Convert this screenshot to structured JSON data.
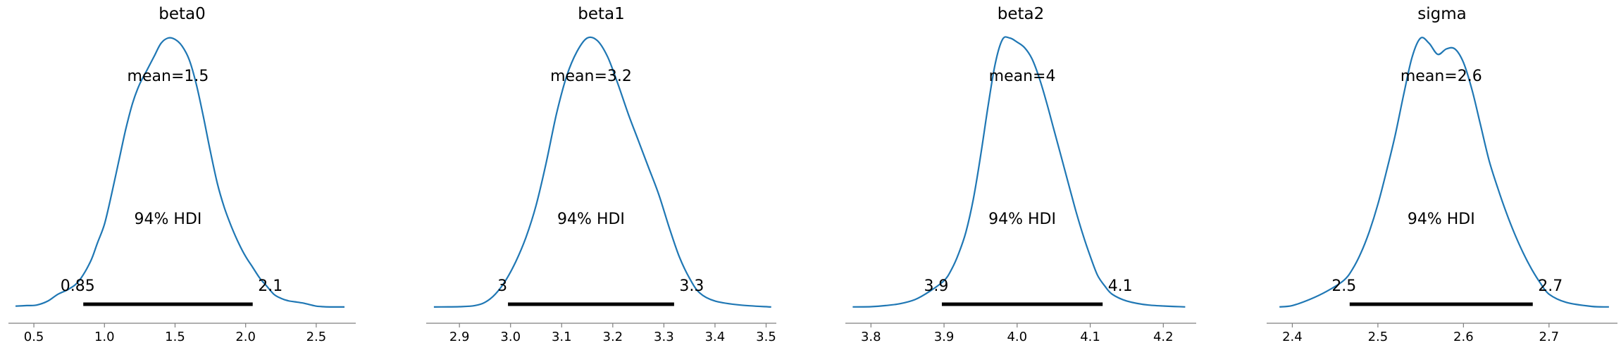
{
  "chart_data": [
    {
      "type": "line",
      "title": "beta0",
      "mean_label": "mean=1.5",
      "hdi_label": "94% HDI",
      "hdi": [
        0.85,
        2.05
      ],
      "hdi_tick_labels": [
        "0.85",
        "2.1"
      ],
      "xlim": [
        0.32,
        2.78
      ],
      "xticks": [
        0.5,
        1.0,
        1.5,
        2.0,
        2.5
      ],
      "xtick_labels": [
        "0.5",
        "1.0",
        "1.5",
        "2.0",
        "2.5"
      ],
      "density": {
        "x": [
          0.37,
          0.45,
          0.52,
          0.6,
          0.67,
          0.75,
          0.82,
          0.9,
          0.95,
          1.0,
          1.05,
          1.1,
          1.15,
          1.2,
          1.25,
          1.3,
          1.35,
          1.4,
          1.45,
          1.5,
          1.55,
          1.6,
          1.65,
          1.7,
          1.75,
          1.8,
          1.85,
          1.9,
          1.95,
          2.0,
          2.05,
          2.1,
          2.15,
          2.2,
          2.25,
          2.3,
          2.35,
          2.4,
          2.45,
          2.5,
          2.55,
          2.6,
          2.65,
          2.7
        ],
        "y": [
          0.006,
          0.008,
          0.01,
          0.025,
          0.05,
          0.07,
          0.1,
          0.17,
          0.24,
          0.31,
          0.42,
          0.54,
          0.66,
          0.76,
          0.83,
          0.88,
          0.93,
          0.98,
          1.0,
          0.995,
          0.97,
          0.92,
          0.83,
          0.71,
          0.58,
          0.46,
          0.37,
          0.3,
          0.24,
          0.19,
          0.15,
          0.11,
          0.08,
          0.05,
          0.035,
          0.026,
          0.022,
          0.018,
          0.012,
          0.006,
          0.004,
          0.003,
          0.003,
          0.003
        ]
      }
    },
    {
      "type": "line",
      "title": "beta1",
      "mean_label": "mean=3.2",
      "hdi_label": "94% HDI",
      "hdi": [
        2.995,
        3.32
      ],
      "hdi_tick_labels": [
        "3",
        "3.3"
      ],
      "xlim": [
        2.835,
        3.52
      ],
      "xticks": [
        2.9,
        3.0,
        3.1,
        3.2,
        3.3,
        3.4,
        3.5
      ],
      "xtick_labels": [
        "2.9",
        "3.0",
        "3.1",
        "3.2",
        "3.3",
        "3.4",
        "3.5"
      ],
      "density": {
        "x": [
          2.85,
          2.9,
          2.93,
          2.95,
          2.97,
          2.99,
          3.01,
          3.03,
          3.05,
          3.07,
          3.09,
          3.11,
          3.13,
          3.15,
          3.17,
          3.19,
          3.21,
          3.23,
          3.25,
          3.27,
          3.29,
          3.31,
          3.33,
          3.35,
          3.37,
          3.4,
          3.45,
          3.51
        ],
        "y": [
          0.003,
          0.004,
          0.008,
          0.02,
          0.05,
          0.1,
          0.17,
          0.26,
          0.38,
          0.54,
          0.72,
          0.86,
          0.95,
          1.0,
          0.99,
          0.93,
          0.83,
          0.72,
          0.62,
          0.52,
          0.42,
          0.3,
          0.19,
          0.11,
          0.055,
          0.025,
          0.01,
          0.003
        ]
      }
    },
    {
      "type": "line",
      "title": "beta2",
      "mean_label": "mean=4",
      "hdi_label": "94% HDI",
      "hdi": [
        3.897,
        4.117
      ],
      "hdi_tick_labels": [
        "3.9",
        "4.1"
      ],
      "xlim": [
        3.765,
        4.245
      ],
      "xticks": [
        3.8,
        3.9,
        4.0,
        4.1,
        4.2
      ],
      "xtick_labels": [
        "3.8",
        "3.9",
        "4.0",
        "4.1",
        "4.2"
      ],
      "density": {
        "x": [
          3.775,
          3.8,
          3.82,
          3.84,
          3.86,
          3.88,
          3.9,
          3.91,
          3.92,
          3.93,
          3.94,
          3.95,
          3.96,
          3.97,
          3.98,
          3.99,
          4.0,
          4.01,
          4.02,
          4.03,
          4.04,
          4.05,
          4.06,
          4.07,
          4.08,
          4.09,
          4.1,
          4.11,
          4.12,
          4.13,
          4.15,
          4.18,
          4.23
        ],
        "y": [
          0.003,
          0.004,
          0.008,
          0.015,
          0.03,
          0.06,
          0.1,
          0.14,
          0.2,
          0.28,
          0.4,
          0.56,
          0.74,
          0.9,
          0.99,
          0.995,
          0.98,
          0.96,
          0.92,
          0.85,
          0.76,
          0.66,
          0.56,
          0.46,
          0.36,
          0.27,
          0.19,
          0.12,
          0.08,
          0.05,
          0.025,
          0.01,
          0.003
        ]
      }
    },
    {
      "type": "line",
      "title": "sigma",
      "mean_label": "mean=2.6",
      "hdi_label": "94% HDI",
      "hdi": [
        2.467,
        2.681
      ],
      "hdi_tick_labels": [
        "2.5",
        "2.7"
      ],
      "xlim": [
        2.37,
        2.78
      ],
      "xticks": [
        2.4,
        2.5,
        2.6,
        2.7
      ],
      "xtick_labels": [
        "2.4",
        "2.5",
        "2.6",
        "2.7"
      ],
      "density": {
        "x": [
          2.385,
          2.4,
          2.42,
          2.44,
          2.46,
          2.47,
          2.48,
          2.49,
          2.5,
          2.51,
          2.52,
          2.53,
          2.54,
          2.55,
          2.56,
          2.57,
          2.58,
          2.59,
          2.6,
          2.61,
          2.62,
          2.63,
          2.64,
          2.65,
          2.66,
          2.67,
          2.68,
          2.69,
          2.7,
          2.72,
          2.75,
          2.77
        ],
        "y": [
          0.003,
          0.008,
          0.03,
          0.06,
          0.1,
          0.14,
          0.2,
          0.28,
          0.38,
          0.5,
          0.63,
          0.78,
          0.92,
          0.99,
          0.97,
          0.93,
          0.95,
          0.95,
          0.9,
          0.8,
          0.67,
          0.54,
          0.44,
          0.35,
          0.27,
          0.2,
          0.14,
          0.09,
          0.05,
          0.02,
          0.005,
          0.003
        ]
      }
    }
  ]
}
